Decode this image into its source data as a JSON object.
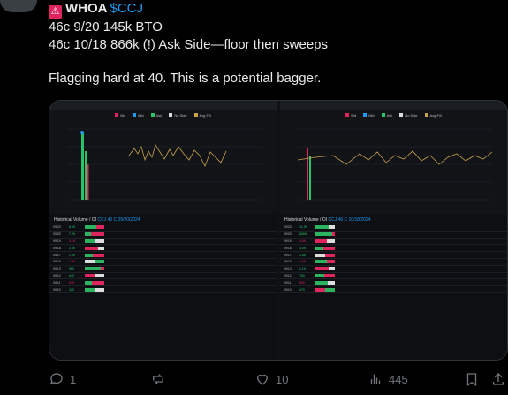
{
  "author": {
    "name": "WHOA",
    "handle": "$CCJ",
    "flag_icon": "siren-icon"
  },
  "post": {
    "line1": "46c 9/20 145k BTO",
    "line2": "46c 10/18 866k (!) Ask Side—floor then sweeps",
    "line3": "Flagging hard at 40. This is a potential bagger."
  },
  "media": {
    "left_title": "Historical Volume / OI",
    "left_contract": "CCJ 46 C 09/20/2024",
    "right_title": "Historical Volume / OI",
    "right_contract": "CCJ 46 C 10/18/2024",
    "legend": [
      "Bid",
      "Mid",
      "Ask",
      "No Side",
      "Avg Fill"
    ]
  },
  "actions": {
    "replies": "1",
    "reposts": "",
    "likes": "10",
    "views": "445"
  },
  "colors": {
    "accent": "#1d9bf0",
    "bid": "#e0245e",
    "ask": "#27c46a",
    "line": "#c8a24a"
  }
}
